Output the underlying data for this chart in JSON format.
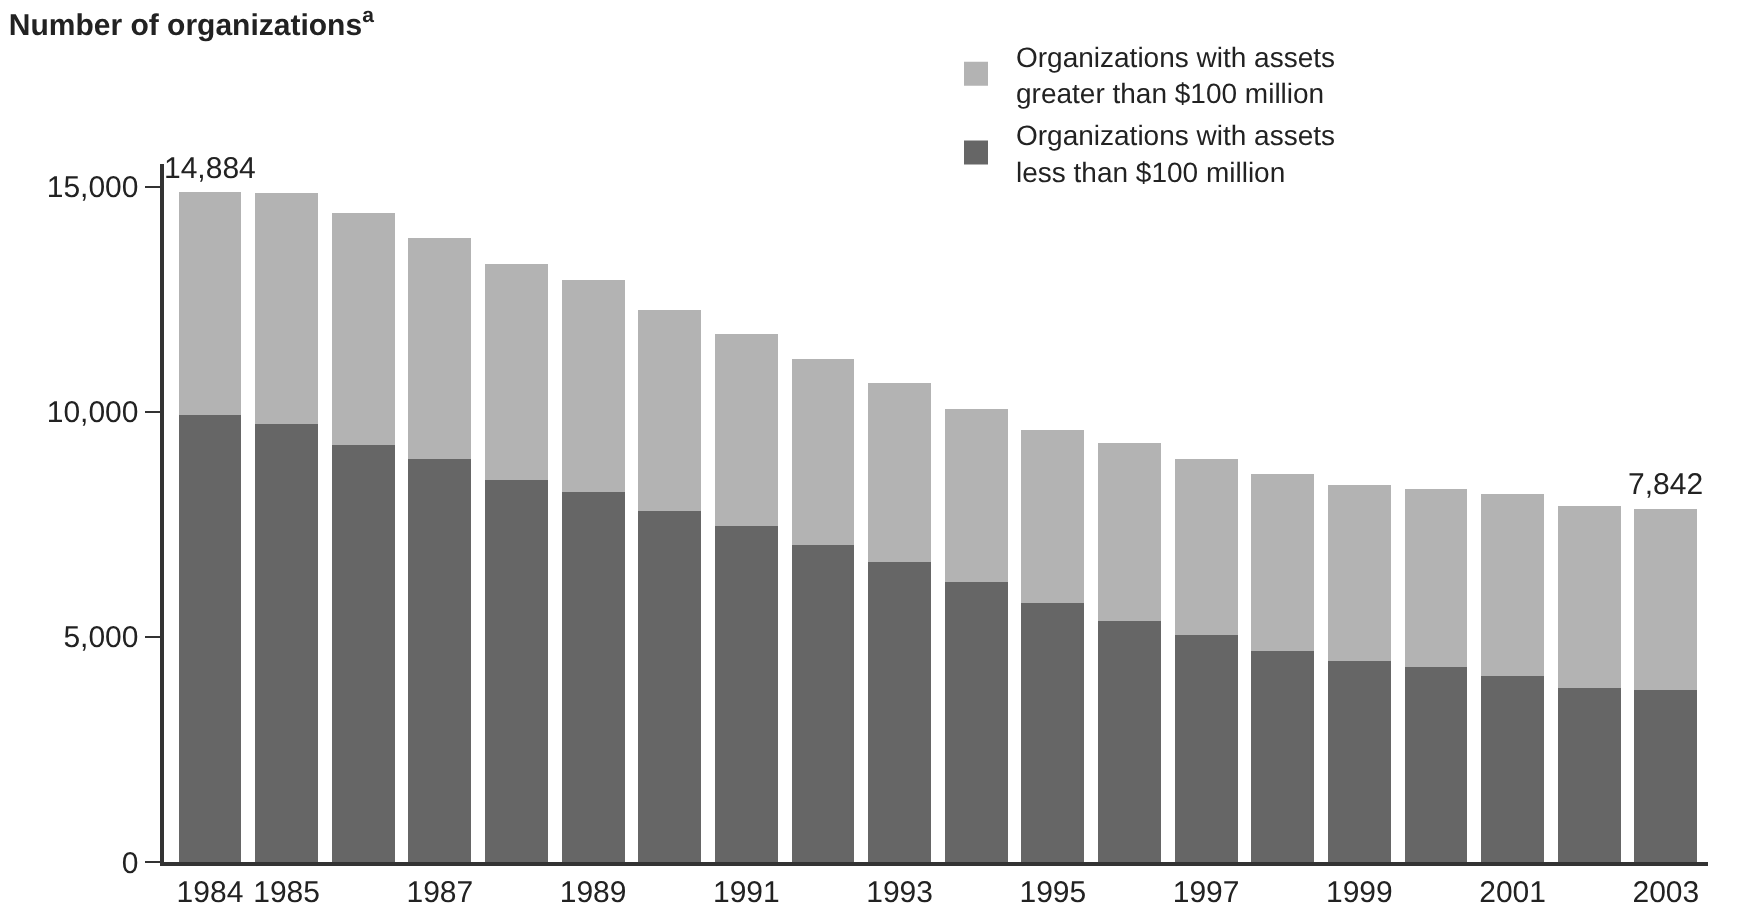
{
  "chart_data": {
    "type": "bar",
    "title": "Number of organizations$^{a}$",
    "stacked": true,
    "categories": [
      "1984",
      "1985",
      null,
      "1987",
      null,
      "1989",
      null,
      "1991",
      null,
      "1993",
      null,
      "1995",
      null,
      "1997",
      null,
      "1999",
      null,
      "2001",
      null,
      "2003"
    ],
    "series": [
      {
        "name": "Organizations with assets less than $100 million",
        "color": "#666666",
        "values": [
          9930,
          9720,
          9260,
          8940,
          8480,
          8210,
          7790,
          7460,
          7050,
          6660,
          6220,
          5750,
          5360,
          5030,
          4690,
          4460,
          4330,
          4120,
          3870,
          3810
        ]
      },
      {
        "name": "Organizations with assets greater than $100 million",
        "color": "#b3b3b3",
        "values": [
          4954,
          5140,
          5150,
          4910,
          4790,
          4720,
          4470,
          4260,
          4120,
          3970,
          3840,
          3840,
          3940,
          3920,
          3930,
          3910,
          3950,
          4050,
          4040,
          4032
        ]
      }
    ],
    "totals": [
      "14,884",
      null,
      null,
      null,
      null,
      null,
      null,
      null,
      null,
      null,
      null,
      null,
      null,
      null,
      null,
      null,
      null,
      null,
      null,
      "7,842"
    ],
    "ylim": [
      0,
      15500
    ],
    "yticks": [
      0,
      {
        "value": 5000,
        "label": "5,000"
      },
      {
        "value": 10000,
        "label": "10,000"
      },
      {
        "value": 15000,
        "label": "15,000"
      }
    ],
    "grid": false,
    "legend": "top right"
  }
}
